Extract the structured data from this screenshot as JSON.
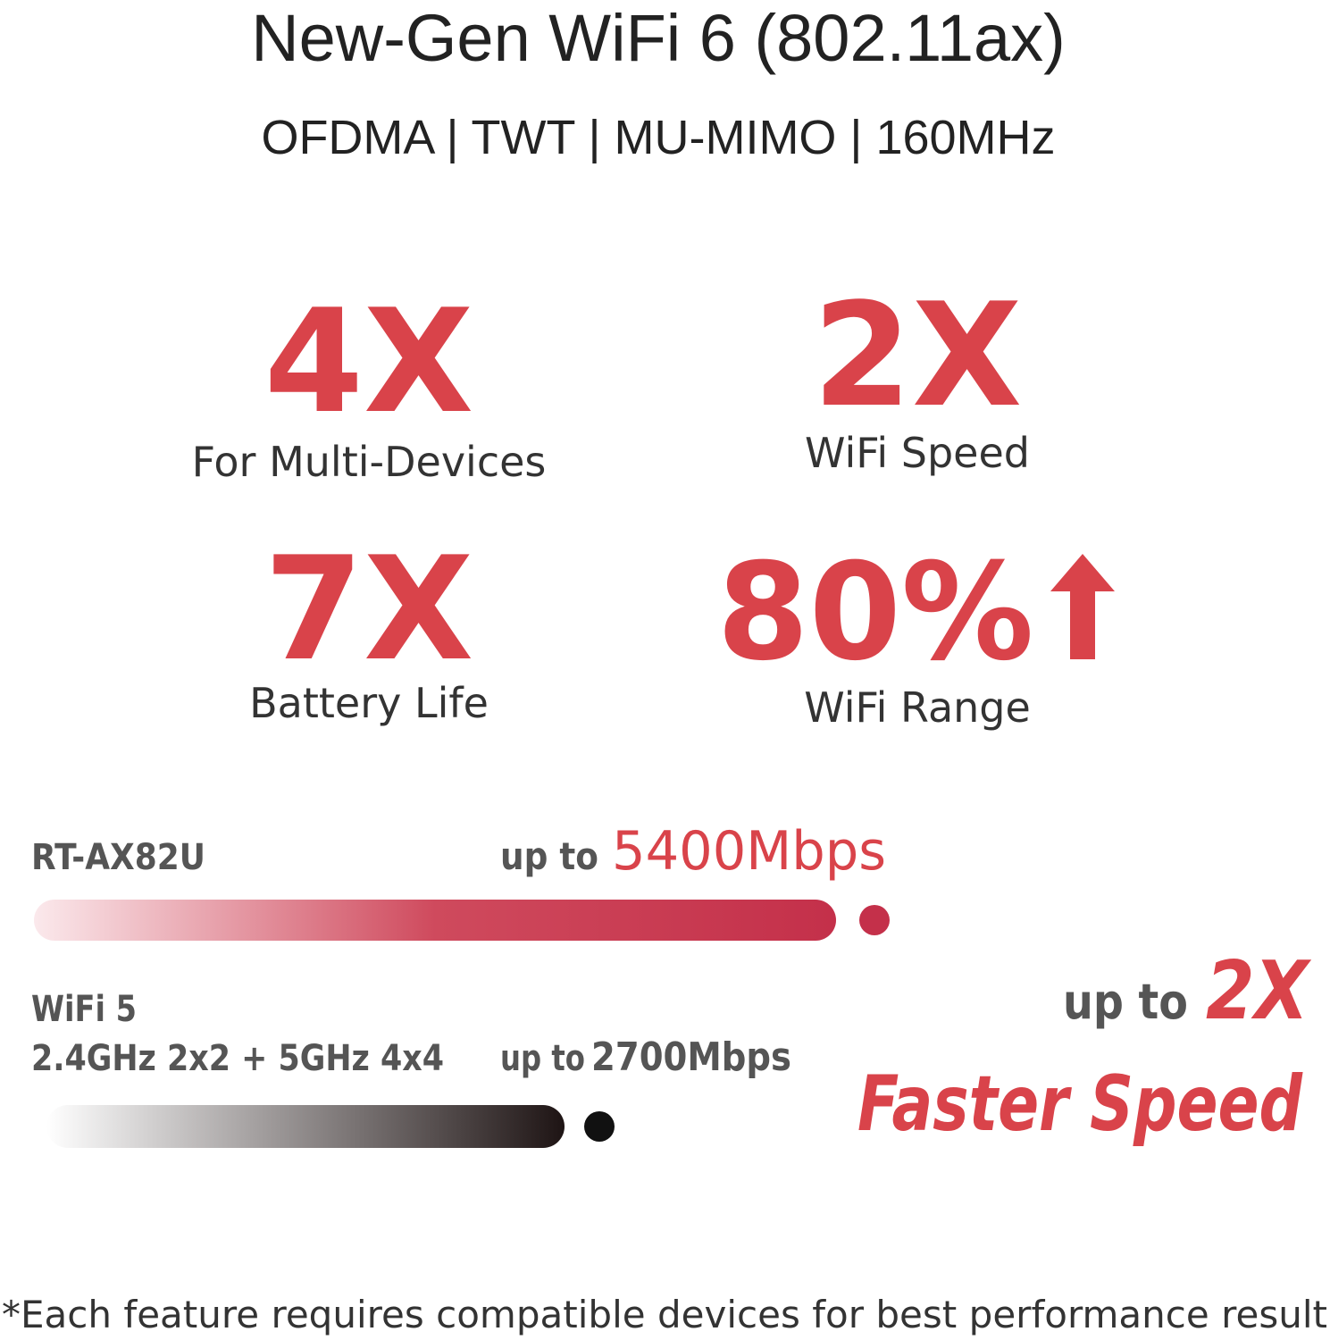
{
  "header": {
    "title": "New-Gen WiFi 6 (802.11ax)",
    "subtitle": "OFDMA | TWT | MU-MIMO | 160MHz"
  },
  "stats": [
    {
      "figure": "4X",
      "label": "For Multi-Devices"
    },
    {
      "figure": "2X",
      "label": "WiFi Speed"
    },
    {
      "figure": "7X",
      "label": "Battery Life"
    },
    {
      "figure": "80%",
      "label": "WiFi Range"
    }
  ],
  "comparison": [
    {
      "name": "RT-AX82U",
      "prefix": "up to",
      "speed": "5400Mbps"
    },
    {
      "name": "WiFi 5",
      "detail": "2.4GHz 2x2 + 5GHz 4x4",
      "prefix": "up to",
      "speed": "2700Mbps"
    }
  ],
  "callout": {
    "prefix": "up to",
    "figure": "2X",
    "tagline": "Faster Speed"
  },
  "footnote": "*Each feature requires compatible devices for best performance result"
}
